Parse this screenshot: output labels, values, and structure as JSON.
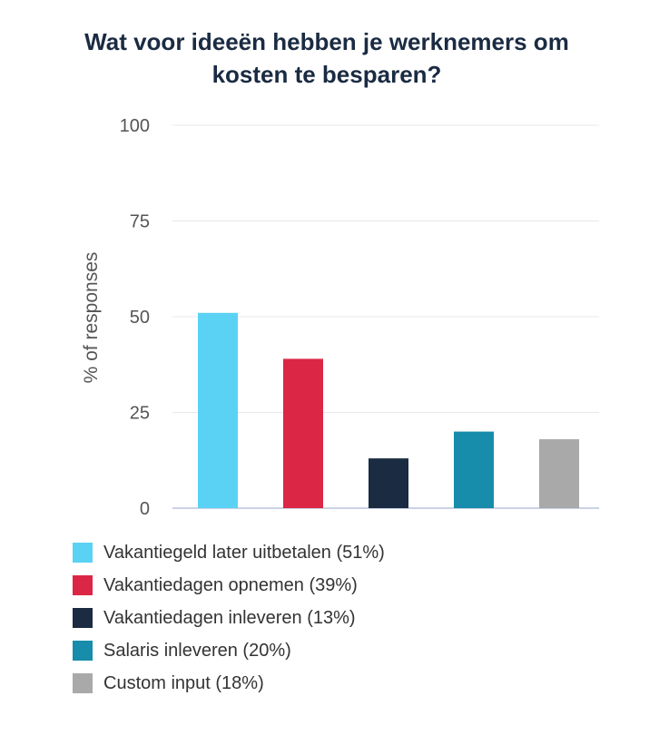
{
  "chart_data": {
    "type": "bar",
    "title_lines": [
      "Wat voor ideeën hebben je werknemers om",
      "kosten te besparen?"
    ],
    "ylabel": "% of responses",
    "xlabel": "",
    "ylim": [
      0,
      100
    ],
    "yticks": [
      "0",
      "25",
      "50",
      "75",
      "100"
    ],
    "grid": true,
    "legend_position": "bottom-left",
    "categories": [
      "Vakantiegeld later uitbetalen (51%)",
      "Vakantiedagen opnemen (39%)",
      "Vakantiedagen inleveren (13%)",
      "Salaris inleveren (20%)",
      "Custom input (18%)"
    ],
    "values": [
      51,
      39,
      13,
      20,
      18
    ],
    "colors": [
      "#5ad2f4",
      "#dc2645",
      "#1a2b42",
      "#178cab",
      "#a9a9a9"
    ]
  }
}
